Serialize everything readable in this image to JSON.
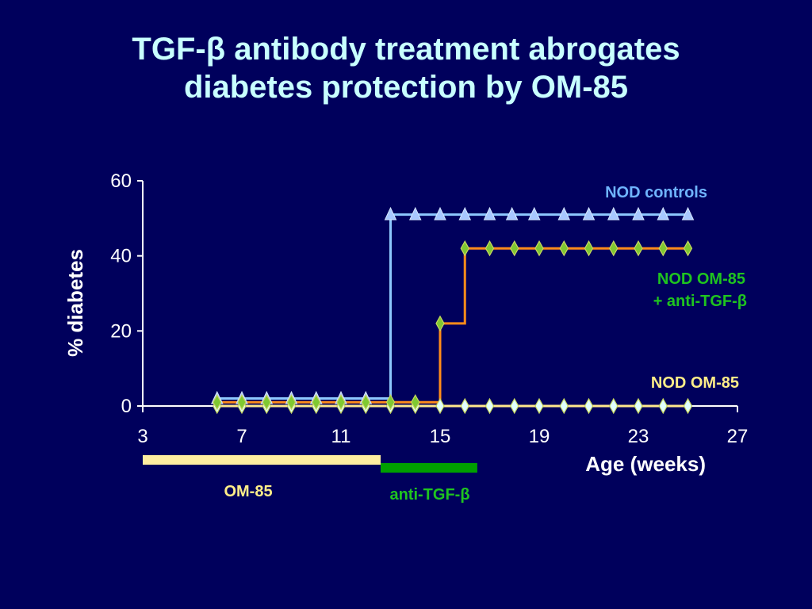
{
  "slide": {
    "title_line1": "TGF-β antibody treatment abrogates",
    "title_line2": "diabetes protection by OM-85"
  },
  "chart_data": {
    "type": "line",
    "step": true,
    "xlabel": "Age (weeks)",
    "ylabel": "% diabetes",
    "xlim": [
      3,
      27
    ],
    "ylim": [
      0,
      60
    ],
    "x_ticks": [
      3,
      7,
      11,
      15,
      19,
      23,
      27
    ],
    "y_ticks": [
      0,
      20,
      40,
      60
    ],
    "grid": false,
    "series": [
      {
        "name": "NOD controls",
        "color": "#8ec8ff",
        "marker": "triangle",
        "marker_fill": "#a8c8ff",
        "x": [
          6,
          7,
          8,
          9,
          10,
          11,
          12,
          13,
          14,
          15,
          16,
          17,
          17.9,
          18.8,
          20,
          21,
          22,
          23,
          24,
          25
        ],
        "y": [
          2,
          2,
          2,
          2,
          2,
          2,
          2,
          51,
          51,
          51,
          51,
          51,
          51,
          51,
          51,
          51,
          51,
          51,
          51,
          51
        ]
      },
      {
        "name": "NOD OM-85 + anti-TGF-β",
        "label_lines": [
          "NOD OM-85",
          "+ anti-TGF-β"
        ],
        "color": "#ff8c1a",
        "marker": "diamond",
        "marker_fill": "#7fc832",
        "x": [
          6,
          7,
          8,
          9,
          10,
          11,
          12,
          13,
          14,
          15,
          16,
          17,
          18,
          19,
          20,
          21,
          22,
          23,
          24,
          25
        ],
        "y": [
          1,
          1,
          1,
          1,
          1,
          1,
          1,
          1,
          1,
          22,
          42,
          42,
          42,
          42,
          42,
          42,
          42,
          42,
          42,
          42
        ]
      },
      {
        "name": "NOD OM-85",
        "color": "#ffe88c",
        "marker": "diamond",
        "marker_fill": "#e0ffff",
        "x": [
          6,
          7,
          8,
          9,
          10,
          11,
          12,
          13,
          14,
          15,
          16,
          17,
          18,
          19,
          20,
          21,
          22,
          23,
          24,
          25
        ],
        "y": [
          0,
          0,
          0,
          0,
          0,
          0,
          0,
          0,
          0,
          0,
          0,
          0,
          0,
          0,
          0,
          0,
          0,
          0,
          0,
          0
        ]
      }
    ],
    "treatment_bars": [
      {
        "label": "OM-85",
        "start": 3,
        "end": 12.6,
        "color": "#ffeea0"
      },
      {
        "label": "anti-TGF-β",
        "start": 12.6,
        "end": 16.5,
        "color": "#00a000"
      }
    ],
    "label_colors": {
      "NOD controls": "#6fb4ff",
      "NOD OM-85 + anti-TGF-β": "#1fc41f",
      "NOD OM-85": "#ffee88"
    }
  }
}
